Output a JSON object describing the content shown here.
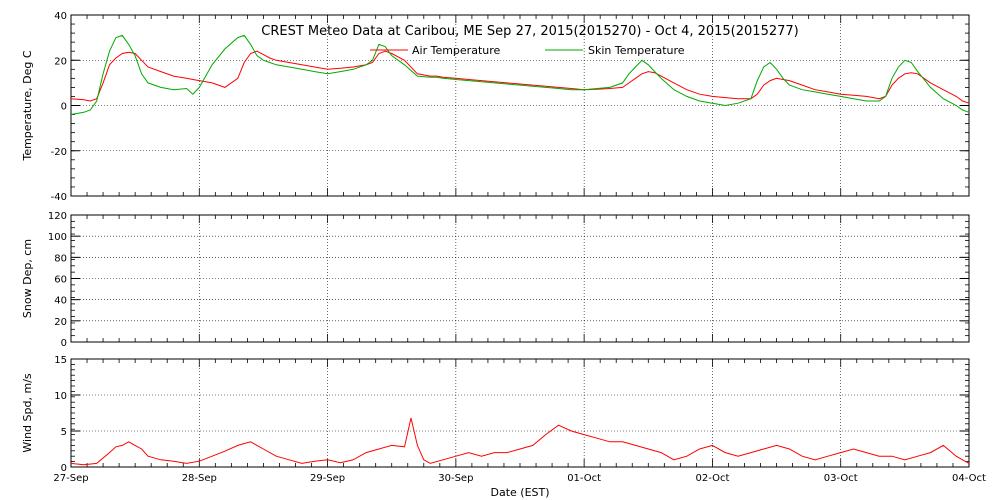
{
  "chart_data": [
    {
      "type": "line",
      "title": "CREST Meteo Data at Caribou, ME   Sep 27, 2015(2015270) - Oct  4, 2015(2015277)",
      "ylabel": "Temperature, Deg C",
      "ylim": [
        -40,
        40
      ],
      "yticks": [
        -40,
        -20,
        0,
        20,
        40
      ],
      "legend": "top-center",
      "grid": true,
      "series": [
        {
          "name": "Air Temperature",
          "color": "#ff0000",
          "x": [
            0,
            0.1,
            0.15,
            0.2,
            0.25,
            0.3,
            0.35,
            0.4,
            0.45,
            0.5,
            0.55,
            0.6,
            0.7,
            0.8,
            0.9,
            0.95,
            1.0,
            1.1,
            1.2,
            1.3,
            1.35,
            1.4,
            1.45,
            1.5,
            1.55,
            1.6,
            1.7,
            1.8,
            1.9,
            2.0,
            2.1,
            2.2,
            2.3,
            2.35,
            2.4,
            2.45,
            2.5,
            2.6,
            2.7,
            2.8,
            2.85,
            2.9,
            3.0,
            3.1,
            3.2,
            3.3,
            3.4,
            3.5,
            3.6,
            3.7,
            3.8,
            3.9,
            4.0,
            4.1,
            4.2,
            4.3,
            4.35,
            4.4,
            4.45,
            4.5,
            4.55,
            4.6,
            4.7,
            4.8,
            4.9,
            5.0,
            5.1,
            5.2,
            5.3,
            5.35,
            5.4,
            5.45,
            5.5,
            5.55,
            5.6,
            5.7,
            5.8,
            5.9,
            6.0,
            6.1,
            6.2,
            6.3,
            6.35,
            6.4,
            6.45,
            6.5,
            6.55,
            6.6,
            6.7,
            6.8,
            6.9,
            6.95,
            7.0
          ],
          "y": [
            3,
            2.5,
            2,
            3,
            10,
            18,
            21,
            23,
            23.5,
            23,
            20,
            17,
            15,
            13,
            12,
            11.5,
            11,
            10,
            8,
            12,
            19,
            23,
            24,
            22.5,
            21,
            20,
            19,
            18,
            17,
            16,
            16.5,
            17,
            18,
            19,
            23,
            24,
            23,
            20,
            14,
            13,
            13,
            12.5,
            12,
            11.5,
            11,
            10.5,
            10,
            9.5,
            9,
            8.5,
            8,
            7.5,
            7,
            7.2,
            7.5,
            8,
            10,
            12,
            14,
            15,
            14.5,
            13,
            10,
            7,
            5,
            4,
            3.5,
            3,
            3,
            5,
            9,
            11,
            12,
            11.5,
            11,
            9,
            7,
            6,
            5,
            4.5,
            4,
            3,
            4,
            9,
            12,
            14,
            14.5,
            14,
            10,
            7,
            4,
            2,
            1
          ]
        },
        {
          "name": "Skin Temperature",
          "color": "#00aa00",
          "x": [
            0,
            0.1,
            0.15,
            0.2,
            0.25,
            0.3,
            0.35,
            0.4,
            0.45,
            0.5,
            0.55,
            0.6,
            0.7,
            0.8,
            0.9,
            0.95,
            1.0,
            1.1,
            1.2,
            1.3,
            1.35,
            1.4,
            1.45,
            1.5,
            1.55,
            1.6,
            1.7,
            1.8,
            1.9,
            2.0,
            2.1,
            2.2,
            2.3,
            2.35,
            2.4,
            2.45,
            2.5,
            2.6,
            2.7,
            2.8,
            2.85,
            2.9,
            3.0,
            3.1,
            3.2,
            3.3,
            3.4,
            3.5,
            3.6,
            3.7,
            3.8,
            3.9,
            4.0,
            4.1,
            4.2,
            4.3,
            4.35,
            4.4,
            4.45,
            4.5,
            4.55,
            4.6,
            4.7,
            4.8,
            4.9,
            5.0,
            5.1,
            5.2,
            5.3,
            5.35,
            5.4,
            5.45,
            5.5,
            5.55,
            5.6,
            5.7,
            5.8,
            5.9,
            6.0,
            6.1,
            6.2,
            6.3,
            6.35,
            6.4,
            6.45,
            6.5,
            6.55,
            6.6,
            6.7,
            6.8,
            6.9,
            6.95,
            7.0
          ],
          "y": [
            -4,
            -3,
            -2,
            2,
            14,
            24,
            30,
            31,
            27,
            22,
            14,
            10,
            8,
            7,
            7.5,
            5,
            8,
            18,
            25,
            30,
            31,
            27,
            22,
            20,
            19,
            18,
            17,
            16,
            15,
            14,
            15,
            16,
            18,
            20,
            27,
            26,
            22,
            18,
            13,
            12.5,
            12.5,
            12,
            11.5,
            11,
            10.5,
            10,
            9.5,
            9,
            8.5,
            8,
            7.5,
            7,
            7,
            7.5,
            8,
            10,
            14,
            17,
            20,
            18,
            15,
            12,
            7,
            4,
            2,
            1,
            0,
            1,
            3,
            11,
            17,
            19,
            16,
            12,
            9,
            7,
            6,
            5,
            4,
            3,
            2,
            2,
            4,
            12,
            17,
            20,
            19,
            15,
            8,
            3,
            0,
            -2,
            -3
          ]
        }
      ]
    },
    {
      "type": "line",
      "ylabel": "Snow Dep, cm",
      "ylim": [
        0,
        120
      ],
      "yticks": [
        0,
        20,
        40,
        60,
        80,
        100,
        120
      ],
      "grid": true,
      "series": []
    },
    {
      "type": "line",
      "ylabel": "Wind Spd, m/s",
      "ylim": [
        0,
        15
      ],
      "yticks": [
        0,
        5,
        10,
        15
      ],
      "xlabel": "Date (EST)",
      "grid": true,
      "series": [
        {
          "color": "#ff0000",
          "x": [
            0,
            0.1,
            0.2,
            0.3,
            0.35,
            0.4,
            0.45,
            0.5,
            0.55,
            0.6,
            0.7,
            0.8,
            0.9,
            1.0,
            1.1,
            1.2,
            1.3,
            1.4,
            1.45,
            1.5,
            1.6,
            1.7,
            1.8,
            1.9,
            2.0,
            2.1,
            2.2,
            2.3,
            2.4,
            2.5,
            2.6,
            2.65,
            2.7,
            2.75,
            2.8,
            2.9,
            3.0,
            3.1,
            3.2,
            3.3,
            3.4,
            3.5,
            3.6,
            3.7,
            3.8,
            3.9,
            4.0,
            4.1,
            4.2,
            4.3,
            4.4,
            4.5,
            4.6,
            4.7,
            4.8,
            4.9,
            5.0,
            5.1,
            5.2,
            5.3,
            5.4,
            5.5,
            5.6,
            5.7,
            5.8,
            5.9,
            6.0,
            6.1,
            6.2,
            6.3,
            6.4,
            6.5,
            6.6,
            6.7,
            6.8,
            6.9,
            7.0
          ],
          "y": [
            0.5,
            0.3,
            0.5,
            2,
            2.8,
            3,
            3.5,
            3,
            2.5,
            1.5,
            1,
            0.8,
            0.5,
            0.8,
            1.5,
            2.2,
            3,
            3.5,
            3,
            2.5,
            1.5,
            1,
            0.5,
            0.8,
            1,
            0.6,
            1,
            2,
            2.5,
            3,
            2.8,
            6.8,
            3,
            1,
            0.5,
            1,
            1.5,
            2,
            1.5,
            2,
            2,
            2.5,
            3,
            4.5,
            5.8,
            5,
            4.5,
            4,
            3.5,
            3.5,
            3,
            2.5,
            2,
            1,
            1.5,
            2.5,
            3,
            2,
            1.5,
            2,
            2.5,
            3,
            2.5,
            1.5,
            1,
            1.5,
            2,
            2.5,
            2,
            1.5,
            1.5,
            1,
            1.5,
            2,
            3,
            1.5,
            0.5
          ]
        }
      ]
    }
  ],
  "x_axis": {
    "ticks": [
      "27-Sep",
      "28-Sep",
      "29-Sep",
      "30-Sep",
      "01-Oct",
      "02-Oct",
      "03-Oct",
      "04-Oct"
    ],
    "xlabel": "Date (EST)"
  }
}
